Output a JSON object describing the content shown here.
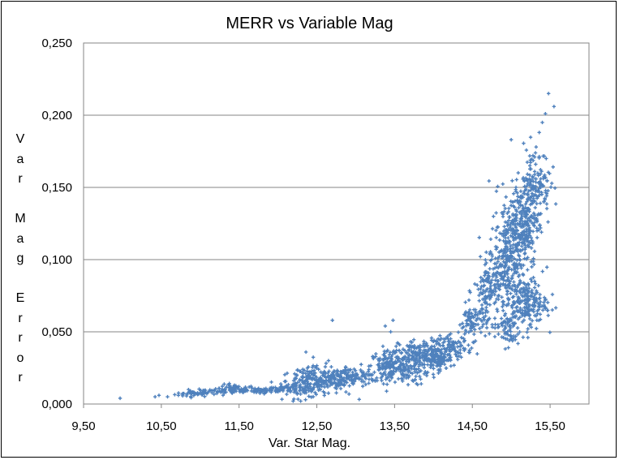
{
  "chart_data": {
    "type": "scatter",
    "title": "MERR vs Variable Mag",
    "xlabel": "Var. Star Mag.",
    "ylabel": "Var Mag Error",
    "xlim": [
      9.5,
      16.0
    ],
    "ylim": [
      0.0,
      0.25
    ],
    "x_ticks": [
      "9,50",
      "10,50",
      "11,50",
      "12,50",
      "13,50",
      "14,50",
      "15,50"
    ],
    "y_ticks": [
      "0,000",
      "0,050",
      "0,100",
      "0,150",
      "0,200",
      "0,250"
    ],
    "grid": "horizontal",
    "legend": "none",
    "marker_color": "#4F81BD",
    "series": [
      {
        "values": [
          [
            9.97,
            0.004
          ],
          [
            10.42,
            0.005
          ],
          [
            10.47,
            0.006
          ],
          [
            10.58,
            0.005
          ],
          [
            10.72,
            0.006
          ],
          [
            10.88,
            0.007
          ],
          [
            10.92,
            0.008
          ],
          [
            10.98,
            0.007
          ],
          [
            11.03,
            0.008
          ],
          [
            11.1,
            0.008
          ],
          [
            11.18,
            0.009
          ],
          [
            11.25,
            0.009
          ],
          [
            11.32,
            0.01
          ],
          [
            11.4,
            0.011
          ],
          [
            11.45,
            0.012
          ],
          [
            11.5,
            0.01
          ],
          [
            11.58,
            0.009
          ],
          [
            11.66,
            0.009
          ],
          [
            11.74,
            0.009
          ],
          [
            11.82,
            0.01
          ],
          [
            11.9,
            0.01
          ],
          [
            11.98,
            0.01
          ],
          [
            12.06,
            0.011
          ],
          [
            12.14,
            0.011
          ],
          [
            12.22,
            0.013
          ],
          [
            12.28,
            0.016
          ],
          [
            12.32,
            0.024
          ],
          [
            12.36,
            0.036
          ],
          [
            12.4,
            0.022
          ],
          [
            12.45,
            0.018
          ],
          [
            12.5,
            0.016
          ],
          [
            12.55,
            0.018
          ],
          [
            12.6,
            0.022
          ],
          [
            12.65,
            0.03
          ],
          [
            12.7,
            0.058
          ],
          [
            12.72,
            0.018
          ],
          [
            12.78,
            0.02
          ],
          [
            12.85,
            0.018
          ],
          [
            12.92,
            0.017
          ],
          [
            13.0,
            0.018
          ],
          [
            13.08,
            0.019
          ],
          [
            13.16,
            0.02
          ],
          [
            13.24,
            0.022
          ],
          [
            13.3,
            0.028
          ],
          [
            13.35,
            0.04
          ],
          [
            13.38,
            0.054
          ],
          [
            13.45,
            0.05
          ],
          [
            13.48,
            0.058
          ],
          [
            13.52,
            0.04
          ],
          [
            13.56,
            0.026
          ],
          [
            13.6,
            0.02
          ],
          [
            13.65,
            0.018
          ],
          [
            13.7,
            0.022
          ],
          [
            13.76,
            0.03
          ],
          [
            13.82,
            0.036
          ],
          [
            13.88,
            0.042
          ],
          [
            13.94,
            0.038
          ],
          [
            14.0,
            0.03
          ],
          [
            14.06,
            0.028
          ],
          [
            14.12,
            0.03
          ],
          [
            14.18,
            0.034
          ],
          [
            14.24,
            0.038
          ],
          [
            14.3,
            0.042
          ],
          [
            14.36,
            0.046
          ],
          [
            14.42,
            0.05
          ],
          [
            14.48,
            0.052
          ],
          [
            14.55,
            0.058
          ],
          [
            14.62,
            0.066
          ],
          [
            14.68,
            0.074
          ],
          [
            14.74,
            0.084
          ],
          [
            14.8,
            0.09
          ],
          [
            14.86,
            0.096
          ],
          [
            14.92,
            0.105
          ],
          [
            14.96,
            0.115
          ],
          [
            15.0,
            0.183
          ],
          [
            15.04,
            0.128
          ],
          [
            15.08,
            0.12
          ],
          [
            15.12,
            0.138
          ],
          [
            15.16,
            0.146
          ],
          [
            15.2,
            0.155
          ],
          [
            15.24,
            0.165
          ],
          [
            15.28,
            0.172
          ],
          [
            15.32,
            0.178
          ],
          [
            15.36,
            0.188
          ],
          [
            15.4,
            0.195
          ],
          [
            15.44,
            0.201
          ],
          [
            15.48,
            0.215
          ],
          [
            15.55,
            0.206
          ],
          [
            15.38,
            0.15
          ],
          [
            15.3,
            0.085
          ],
          [
            15.22,
            0.078
          ],
          [
            15.1,
            0.07
          ],
          [
            15.02,
            0.06
          ],
          [
            14.96,
            0.048
          ],
          [
            14.9,
            0.046
          ],
          [
            15.15,
            0.09
          ],
          [
            15.25,
            0.075
          ],
          [
            15.35,
            0.082
          ],
          [
            15.45,
            0.17
          ],
          [
            15.42,
            0.14
          ]
        ]
      }
    ],
    "clusters": [
      [
        10.92,
        0.007,
        30,
        0.12,
        0.001
      ],
      [
        11.18,
        0.0085,
        40,
        0.16,
        0.0012
      ],
      [
        11.45,
        0.0105,
        40,
        0.12,
        0.0015
      ],
      [
        11.75,
        0.0095,
        50,
        0.22,
        0.0012
      ],
      [
        12.05,
        0.0105,
        60,
        0.22,
        0.0015
      ],
      [
        12.35,
        0.014,
        90,
        0.15,
        0.005
      ],
      [
        12.55,
        0.016,
        140,
        0.22,
        0.005
      ],
      [
        12.8,
        0.018,
        70,
        0.12,
        0.003
      ],
      [
        13.0,
        0.019,
        60,
        0.15,
        0.003
      ],
      [
        13.42,
        0.026,
        130,
        0.12,
        0.006
      ],
      [
        13.62,
        0.025,
        110,
        0.15,
        0.006
      ],
      [
        13.85,
        0.035,
        140,
        0.15,
        0.005
      ],
      [
        14.05,
        0.031,
        100,
        0.1,
        0.004
      ],
      [
        14.25,
        0.039,
        90,
        0.12,
        0.004
      ],
      [
        14.52,
        0.057,
        90,
        0.1,
        0.006
      ],
      [
        14.72,
        0.078,
        110,
        0.1,
        0.01
      ],
      [
        14.95,
        0.1,
        220,
        0.12,
        0.012
      ],
      [
        15.12,
        0.125,
        240,
        0.12,
        0.014
      ],
      [
        15.3,
        0.15,
        160,
        0.1,
        0.014
      ],
      [
        15.18,
        0.07,
        220,
        0.14,
        0.008
      ],
      [
        14.95,
        0.052,
        60,
        0.08,
        0.006
      ]
    ]
  }
}
